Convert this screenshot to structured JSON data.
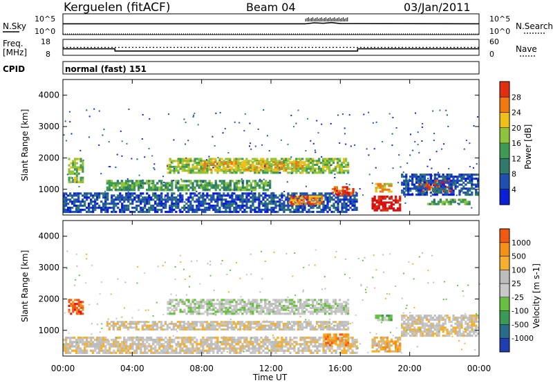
{
  "header": {
    "title": "Kerguelen (fitACF)",
    "beam": "Beam 04",
    "date": "03/Jan/2011"
  },
  "noise_panel": {
    "left_label": "N.Sky",
    "right_label": "N.Search",
    "left_ticks": [
      "10^5",
      "10^0"
    ],
    "right_ticks": [
      "10^5",
      "10^0"
    ]
  },
  "freq_panel": {
    "left_label_1": "Freq.",
    "left_label_2": "[MHz]",
    "left_ticks": [
      "18",
      "8"
    ],
    "right_ticks": [
      "60",
      "0"
    ],
    "right_label": "Nave"
  },
  "cpid": {
    "label": "CPID",
    "value": "normal (fast) 151"
  },
  "colors": {
    "frame": "#000000",
    "background": "#ffffff",
    "power_scale": [
      "#0a1fd6",
      "#1f4fb0",
      "#2f7a6a",
      "#3f9a55",
      "#8ec43a",
      "#f0c01a",
      "#f07a10",
      "#e03010",
      "#d81010"
    ],
    "velocity_scale": [
      "#e81010",
      "#f05a10",
      "#f59018",
      "#f5b030",
      "#bdbdbd",
      "#c8c8c8",
      "#68c040",
      "#3a9a55",
      "#2a6a8a",
      "#1f3fb0"
    ]
  },
  "chart_data": [
    {
      "type": "line",
      "name": "noise",
      "xlim": [
        0,
        24
      ],
      "x_unit": "hours UT",
      "series": [
        {
          "name": "N.Sky",
          "x": [
            0,
            0.1,
            14,
            14.5,
            15,
            15.5,
            16,
            24
          ],
          "values": [
            4,
            4,
            4,
            4.4,
            4.2,
            4.5,
            4.1,
            4
          ]
        },
        {
          "name": "N.Search",
          "x": [
            0,
            24
          ],
          "values": [
            0,
            0
          ]
        }
      ]
    },
    {
      "type": "line",
      "name": "frequency and nave",
      "xlim": [
        0,
        24
      ],
      "series": [
        {
          "name": "Freq",
          "x": [
            0,
            3,
            3,
            17,
            17,
            24
          ],
          "values": [
            12,
            12,
            10.5,
            10.5,
            12,
            12
          ]
        },
        {
          "name": "Nave",
          "x": [
            0,
            24
          ],
          "values": [
            30,
            30
          ]
        }
      ],
      "ylim_left": [
        8,
        18
      ],
      "ylim_right": [
        0,
        60
      ]
    },
    {
      "type": "heatmap",
      "name": "power",
      "title": "",
      "xlabel": "",
      "ylabel": "Slant Range [km]",
      "xlim": [
        0,
        24
      ],
      "ylim": [
        180,
        4500
      ],
      "yticks": [
        "1000",
        "2000",
        "3000",
        "4000"
      ],
      "colorbar": {
        "label": "Power [dB]",
        "ticks": [
          "4",
          "8",
          "12",
          "16",
          "20",
          "24",
          "28"
        ]
      },
      "regions": [
        {
          "x0": 0.3,
          "x1": 1.2,
          "y0": 1200,
          "y1": 2000,
          "level": 4
        },
        {
          "x0": 0.0,
          "x1": 17,
          "y0": 250,
          "y1": 900,
          "level": 1
        },
        {
          "x0": 2.5,
          "x1": 12,
          "y0": 950,
          "y1": 1300,
          "level": 3
        },
        {
          "x0": 6,
          "x1": 16.5,
          "y0": 1500,
          "y1": 2000,
          "level": 4
        },
        {
          "x0": 8,
          "x1": 14,
          "y0": 1600,
          "y1": 1900,
          "level": 5
        },
        {
          "x0": 13,
          "x1": 15,
          "y0": 500,
          "y1": 800,
          "level": 6
        },
        {
          "x0": 15.5,
          "x1": 16.8,
          "y0": 800,
          "y1": 1100,
          "level": 7
        },
        {
          "x0": 17.8,
          "x1": 19.5,
          "y0": 300,
          "y1": 800,
          "level": 8
        },
        {
          "x0": 18,
          "x1": 19,
          "y0": 900,
          "y1": 1200,
          "level": 5
        },
        {
          "x0": 20.5,
          "x1": 22.5,
          "y0": 900,
          "y1": 1300,
          "level": 7
        },
        {
          "x0": 19.5,
          "x1": 24,
          "y0": 800,
          "y1": 1500,
          "level": 1
        },
        {
          "x0": 21,
          "x1": 23.5,
          "y0": 500,
          "y1": 700,
          "level": 3
        }
      ]
    },
    {
      "type": "heatmap",
      "name": "velocity",
      "title": "",
      "xlabel": "Time UT",
      "ylabel": "Slant Range [km]",
      "xlim": [
        0,
        24
      ],
      "ylim": [
        180,
        4500
      ],
      "xticks": [
        "00:00",
        "04:00",
        "08:00",
        "12:00",
        "16:00",
        "20:00",
        "00:00"
      ],
      "yticks": [
        "1000",
        "2000",
        "3000",
        "4000"
      ],
      "colorbar": {
        "label": "Velocity [m s-1]",
        "ticks": [
          "1000",
          "500",
          "100",
          "25",
          "-25",
          "-100",
          "-500",
          "-1000"
        ]
      },
      "regions": [
        {
          "x0": 0.3,
          "x1": 1.2,
          "y0": 1500,
          "y1": 2000,
          "level": 1
        },
        {
          "x0": 2.5,
          "x1": 16.5,
          "y0": 1000,
          "y1": 1300,
          "level": 4
        },
        {
          "x0": 6,
          "x1": 16.5,
          "y0": 1500,
          "y1": 2000,
          "level": 5
        },
        {
          "x0": 0,
          "x1": 17,
          "y0": 250,
          "y1": 800,
          "level": 4
        },
        {
          "x0": 15,
          "x1": 16.5,
          "y0": 500,
          "y1": 900,
          "level": 2
        },
        {
          "x0": 17.8,
          "x1": 19.5,
          "y0": 300,
          "y1": 800,
          "level": 3
        },
        {
          "x0": 19.5,
          "x1": 24,
          "y0": 800,
          "y1": 1500,
          "level": 4
        },
        {
          "x0": 18,
          "x1": 19,
          "y0": 1300,
          "y1": 1500,
          "level": 6
        }
      ]
    }
  ]
}
